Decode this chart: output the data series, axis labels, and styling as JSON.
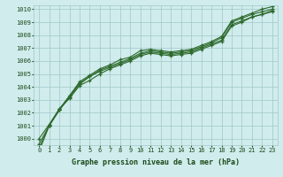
{
  "x": [
    0,
    1,
    2,
    3,
    4,
    5,
    6,
    7,
    8,
    9,
    10,
    11,
    12,
    13,
    14,
    15,
    16,
    17,
    18,
    19,
    20,
    21,
    22,
    23
  ],
  "series": [
    [
      999.3,
      1001.0,
      1002.2,
      1003.2,
      1004.2,
      1004.8,
      1005.2,
      1005.5,
      1005.8,
      1006.1,
      1006.5,
      1006.7,
      1006.6,
      1006.5,
      1006.6,
      1006.7,
      1007.0,
      1007.3,
      1007.6,
      1008.8,
      1009.1,
      1009.4,
      1009.6,
      1009.8
    ],
    [
      999.6,
      1001.0,
      1002.3,
      1003.3,
      1004.3,
      1004.8,
      1005.3,
      1005.6,
      1005.9,
      1006.2,
      1006.6,
      1006.8,
      1006.7,
      1006.6,
      1006.7,
      1006.8,
      1007.1,
      1007.4,
      1007.8,
      1009.0,
      1009.3,
      1009.6,
      1009.8,
      1010.0
    ],
    [
      1000.0,
      1001.1,
      1002.3,
      1003.1,
      1004.1,
      1004.5,
      1005.0,
      1005.4,
      1005.7,
      1006.0,
      1006.4,
      1006.6,
      1006.5,
      1006.4,
      1006.5,
      1006.6,
      1006.9,
      1007.2,
      1007.5,
      1008.7,
      1009.0,
      1009.4,
      1009.6,
      1009.9
    ],
    [
      999.0,
      1001.0,
      1002.2,
      1003.3,
      1004.4,
      1004.9,
      1005.4,
      1005.7,
      1006.1,
      1006.3,
      1006.8,
      1006.9,
      1006.8,
      1006.7,
      1006.8,
      1006.9,
      1007.2,
      1007.5,
      1007.9,
      1009.1,
      1009.4,
      1009.7,
      1010.0,
      1010.2
    ]
  ],
  "line_color": "#2d6a2d",
  "marker_color": "#2d6a2d",
  "bg_color": "#d0ecec",
  "grid_color": "#a0c8c8",
  "label_color": "#1a4a1a",
  "xlabel": "Graphe pression niveau de la mer (hPa)",
  "ylim_min": 999.5,
  "ylim_max": 1010.3,
  "xlim_min": -0.5,
  "xlim_max": 23.5,
  "yticks": [
    1000,
    1001,
    1002,
    1003,
    1004,
    1005,
    1006,
    1007,
    1008,
    1009,
    1010
  ],
  "xticks": [
    0,
    1,
    2,
    3,
    4,
    5,
    6,
    7,
    8,
    9,
    10,
    11,
    12,
    13,
    14,
    15,
    16,
    17,
    18,
    19,
    20,
    21,
    22,
    23
  ]
}
